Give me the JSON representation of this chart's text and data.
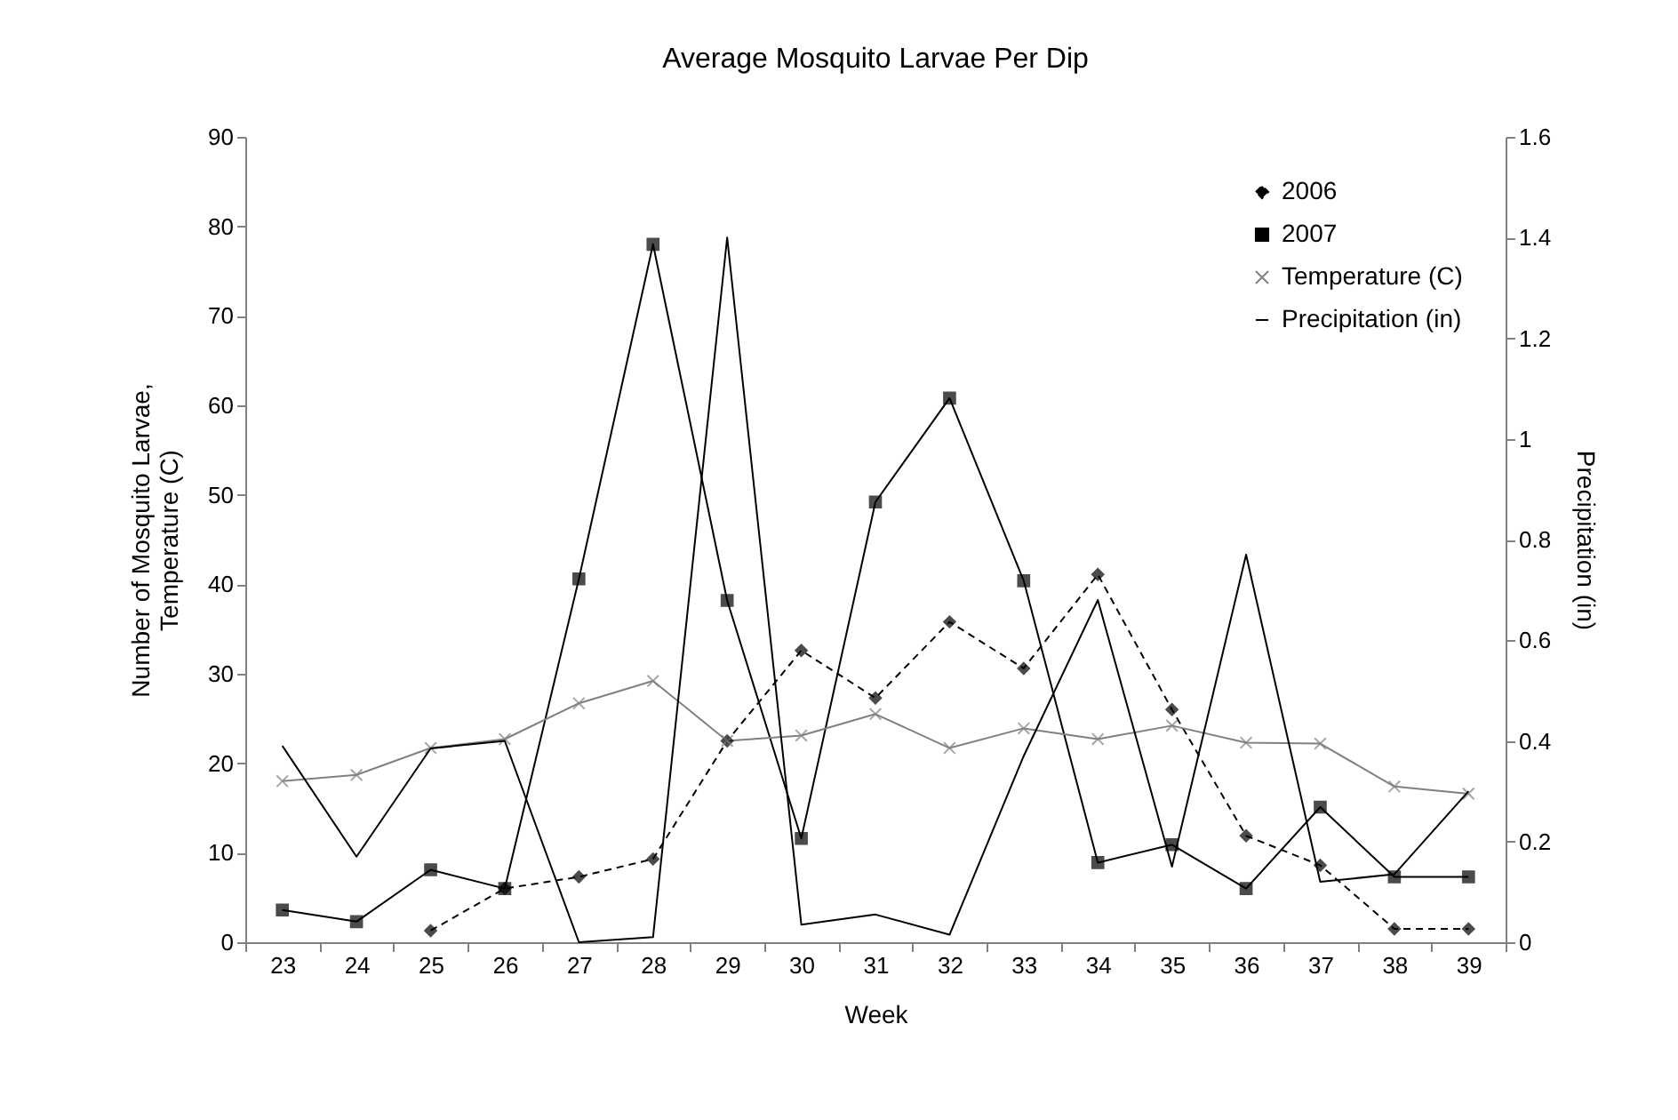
{
  "chart_data": {
    "type": "line",
    "title": "Average Mosquito Larvae Per Dip",
    "xlabel": "Week",
    "ylabel": "Number of Mosquito Larvae,\nTemperature (C)",
    "y2label": "Precipitation (in)",
    "categories": [
      "23",
      "24",
      "25",
      "26",
      "27",
      "28",
      "29",
      "30",
      "31",
      "32",
      "33",
      "34",
      "35",
      "36",
      "37",
      "38",
      "39"
    ],
    "series": [
      {
        "name": "2006",
        "color": "#000000",
        "marker": "diamond",
        "line_style": "dashed",
        "values": [
          null,
          null,
          1.3,
          6.0,
          7.3,
          9.3,
          22.5,
          32.6,
          27.3,
          35.8,
          30.6,
          41.1,
          26.0,
          11.9,
          8.6,
          1.5,
          1.5
        ]
      },
      {
        "name": "2007",
        "color": "#000000",
        "marker": "square",
        "line_style": "solid",
        "values": [
          3.6,
          2.3,
          8.1,
          6.0,
          40.6,
          78.0,
          38.2,
          11.6,
          49.2,
          60.8,
          40.4,
          8.9,
          10.9,
          6.0,
          15.1,
          7.3,
          7.3
        ]
      },
      {
        "name": "Temperature (C)",
        "color": "#808080",
        "marker": "cross",
        "line_style": "solid",
        "values": [
          18.0,
          18.7,
          21.7,
          22.7,
          26.7,
          29.2,
          22.5,
          23.1,
          25.5,
          21.7,
          23.9,
          22.7,
          24.2,
          22.3,
          22.2,
          17.4,
          16.6
        ]
      },
      {
        "name": "Precipitation (in)",
        "color": "#000000",
        "marker": "none",
        "line_style": "solid",
        "axis": "y2",
        "values": [
          0.39,
          0.17,
          0.385,
          0.4,
          0.0,
          0.01,
          1.4,
          0.035,
          0.055,
          0.015,
          0.37,
          0.68,
          0.15,
          0.77,
          0.12,
          0.135,
          0.3
        ]
      }
    ],
    "ylim": [
      0,
      90
    ],
    "yticks": [
      0,
      10,
      20,
      30,
      40,
      50,
      60,
      70,
      80,
      90
    ],
    "y2lim": [
      0,
      1.6
    ],
    "y2ticks": [
      0,
      0.2,
      0.4,
      0.6,
      0.8,
      1,
      1.2,
      1.4,
      1.6
    ],
    "grid": false,
    "legend": "top right"
  }
}
